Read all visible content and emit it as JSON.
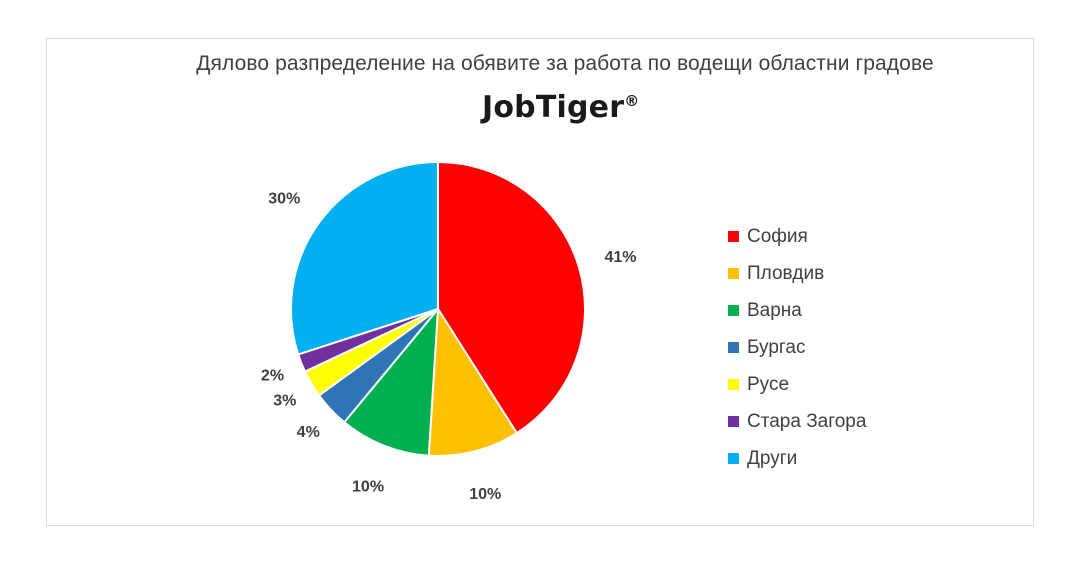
{
  "chart_data": {
    "type": "pie",
    "title": "Дялово разпределение на обявите за работа по водещи областни градове",
    "brand": "JobTiger",
    "brand_mark": "®",
    "categories": [
      "София",
      "Пловдив",
      "Варна",
      "Бургас",
      "Русе",
      "Стара Загора",
      "Други"
    ],
    "values": [
      41,
      10,
      10,
      4,
      3,
      2,
      30
    ],
    "data_labels": [
      "41%",
      "10%",
      "10%",
      "4%",
      "3%",
      "2%",
      "30%"
    ],
    "colors": [
      "#ff0000",
      "#ffc000",
      "#00b050",
      "#2e75b6",
      "#ffff00",
      "#7030a0",
      "#00b0f0"
    ],
    "legend_position": "right",
    "start_angle": "12 o'clock, clockwise"
  }
}
